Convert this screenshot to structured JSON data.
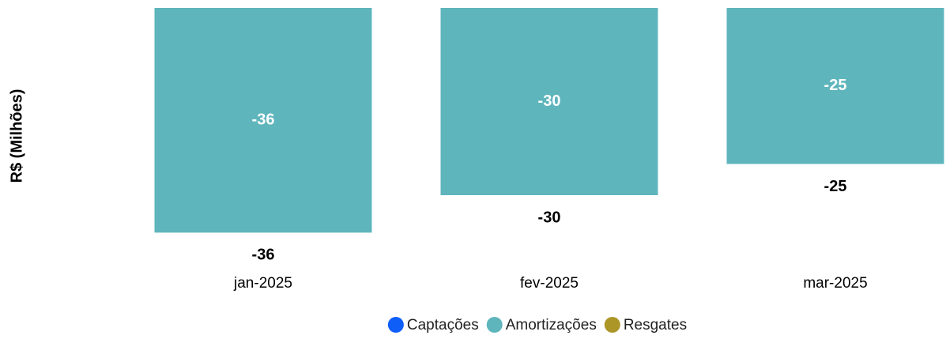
{
  "chart_data": {
    "type": "bar",
    "stacked": true,
    "y_label": "R$ (Milhões)",
    "categories": [
      "jan-2025",
      "fev-2025",
      "mar-2025"
    ],
    "series": [
      {
        "name": "Captações",
        "color": "#0f5ef7",
        "values": [
          null,
          null,
          null
        ]
      },
      {
        "name": "Amortizações",
        "color": "#5fb5bc",
        "values": [
          -36,
          -30,
          -25
        ]
      },
      {
        "name": "Resgates",
        "color": "#ad9628",
        "values": [
          null,
          null,
          null
        ]
      }
    ],
    "totals": [
      -36,
      -30,
      -25
    ],
    "ylim": [
      -40,
      0
    ],
    "legend": "bottom"
  }
}
